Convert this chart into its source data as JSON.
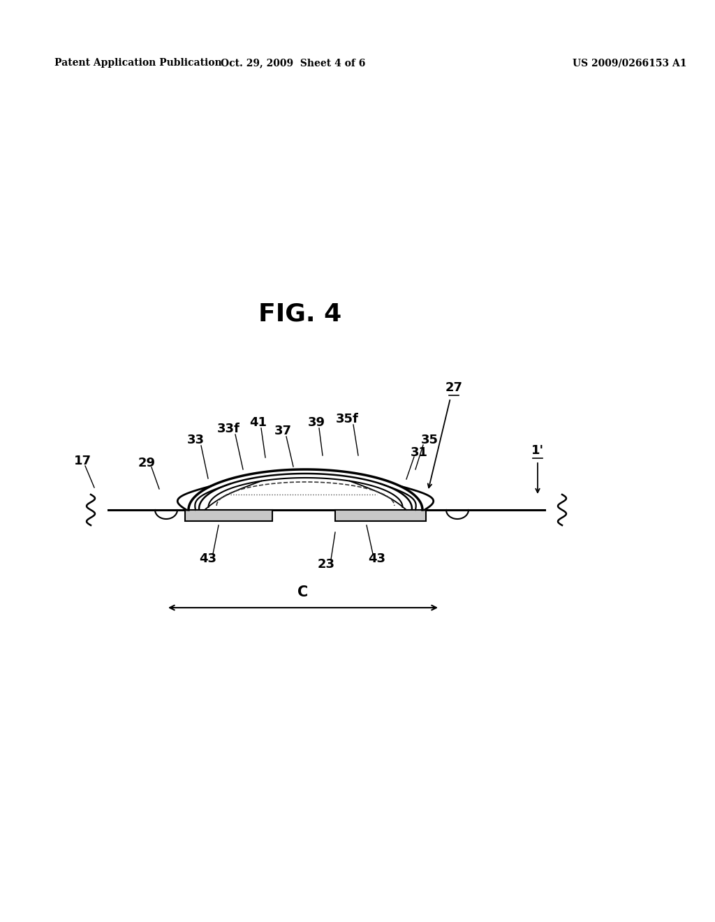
{
  "bg_color": "#ffffff",
  "header_left": "Patent Application Publication",
  "header_mid": "Oct. 29, 2009  Sheet 4 of 6",
  "header_right": "US 2009/0266153 A1",
  "fig_label": "FIG. 4",
  "label_fontsize": 13,
  "header_fontsize": 10
}
